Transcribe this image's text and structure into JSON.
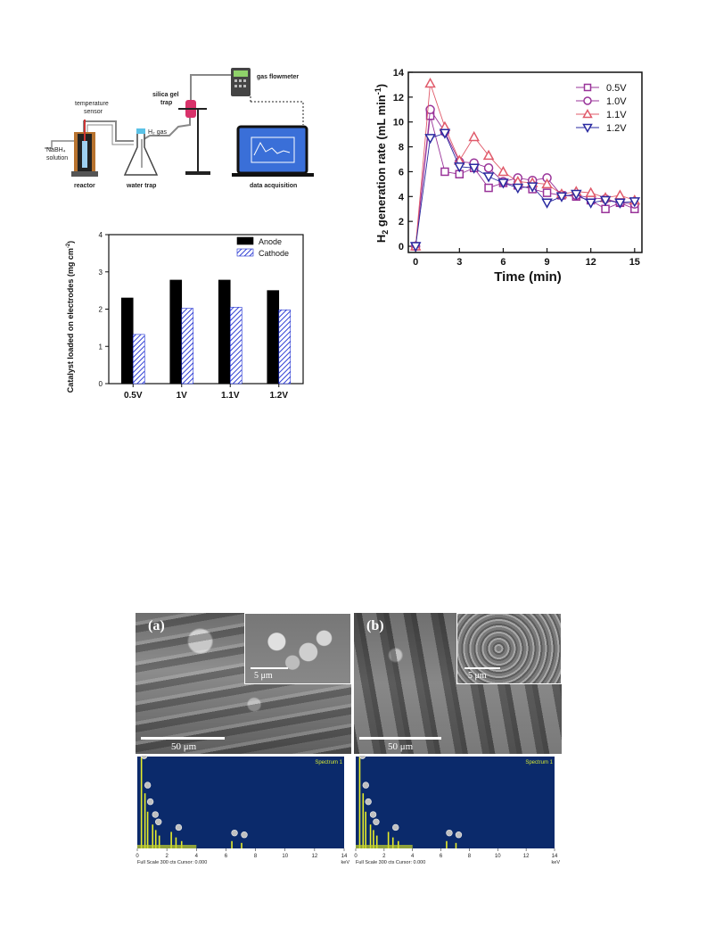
{
  "schematic": {
    "labels": {
      "gas_flowmeter": "gas flowmeter",
      "silica_line1": "silica gel",
      "silica_line2": "trap",
      "temp_line1": "temperature",
      "temp_line2": "sensor",
      "h2_gas": "H₂ gas",
      "nabh4_line1": "NaBH₄",
      "nabh4_line2": "solution",
      "reactor": "reactor",
      "water_trap": "water trap",
      "data_acquisition": "data acquisition"
    }
  },
  "chart_data": [
    {
      "type": "line",
      "title": "",
      "xlabel": "Time (min)",
      "ylabel": "H2 generation rate (mL min-1)",
      "ylabel_parts": {
        "h": "H",
        "sub": "2",
        "rest": " generation rate (mL min",
        "sup": "-1",
        "close": ")"
      },
      "xlim": [
        -0.5,
        15.5
      ],
      "ylim": [
        -0.5,
        14
      ],
      "xticks": [
        0,
        3,
        6,
        9,
        12,
        15
      ],
      "yticks": [
        0,
        2,
        4,
        6,
        8,
        10,
        12,
        14
      ],
      "legend_position": "top-right",
      "x": [
        0,
        1,
        2,
        3,
        4,
        5,
        6,
        7,
        8,
        9,
        10,
        11,
        12,
        13,
        14,
        15
      ],
      "series": [
        {
          "name": "0.5V",
          "marker": "square",
          "color": "#993399",
          "values": [
            0,
            10.5,
            6.0,
            5.8,
            6.3,
            4.7,
            5.1,
            4.9,
            4.6,
            4.3,
            4.1,
            4.0,
            3.7,
            3.0,
            3.5,
            3.0
          ]
        },
        {
          "name": "1.0V",
          "marker": "circle",
          "color": "#993399",
          "values": [
            0,
            11.0,
            9.2,
            6.8,
            6.7,
            6.3,
            5.2,
            5.5,
            5.3,
            5.5,
            4.1,
            4.1,
            3.9,
            3.8,
            3.5,
            3.4
          ]
        },
        {
          "name": "1.1V",
          "marker": "triangle-up",
          "color": "#e05a6a",
          "values": [
            0,
            13.1,
            9.6,
            6.9,
            8.8,
            7.3,
            6.0,
            5.2,
            5.1,
            5.0,
            4.2,
            4.4,
            4.3,
            3.9,
            4.1,
            3.7
          ]
        },
        {
          "name": "1.2V",
          "marker": "triangle-down",
          "color": "#2a2aa0",
          "values": [
            0,
            8.7,
            9.1,
            6.4,
            6.3,
            5.6,
            5.1,
            4.7,
            4.8,
            3.5,
            4.0,
            4.2,
            3.5,
            3.7,
            3.5,
            3.6
          ]
        }
      ]
    },
    {
      "type": "bar",
      "title": "",
      "xlabel": "",
      "ylabel": "Catalyst loaded on electrodes (mg cm-2)",
      "ylabel_parts": {
        "main": "Catalyst loaded on electrodes (mg cm",
        "sup": "-2",
        "close": ")"
      },
      "categories": [
        "0.5V",
        "1V",
        "1.1V",
        "1.2V"
      ],
      "ylim": [
        0,
        4
      ],
      "yticks": [
        0,
        1,
        2,
        3,
        4
      ],
      "legend_position": "top-right",
      "series": [
        {
          "name": "Anode",
          "fill": "#000000",
          "values": [
            2.3,
            2.78,
            2.78,
            2.5
          ]
        },
        {
          "name": "Cathode",
          "fill": "hatch-blue",
          "values": [
            1.32,
            2.02,
            2.05,
            1.98
          ]
        }
      ]
    }
  ],
  "micrographs": {
    "panel_a": {
      "label": "(a)",
      "scale_main": "50 μm",
      "scale_inset": "5 μm"
    },
    "panel_b": {
      "label": "(b)",
      "scale_main": "50 μm",
      "scale_inset": "5 μm"
    },
    "edx": {
      "spectrum_label": "Spectrum 1",
      "footer": "Full Scale 300 cts Cursor: 0.000",
      "unit": "keV",
      "ticks": [
        "0",
        "2",
        "4",
        "6",
        "8",
        "10",
        "12",
        "14"
      ],
      "background": "#0b2a6b"
    }
  }
}
